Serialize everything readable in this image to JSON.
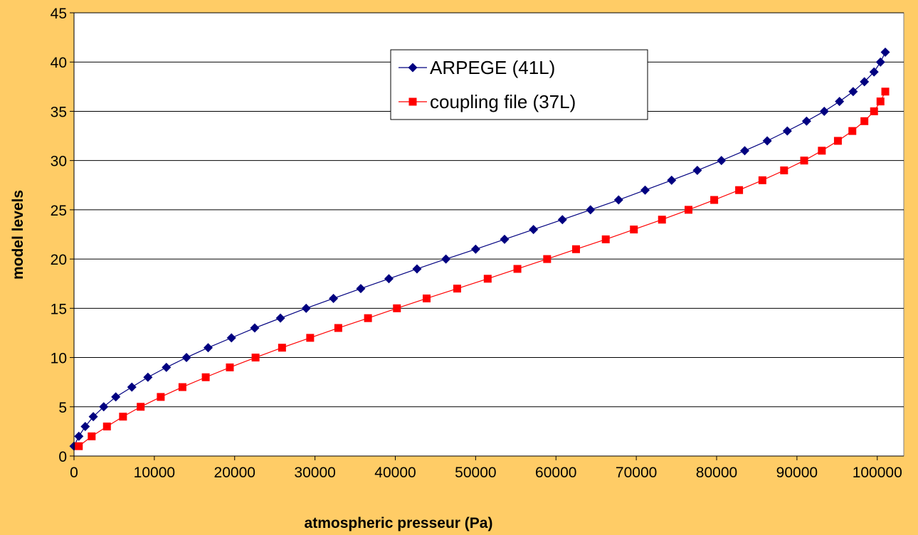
{
  "chart_data": {
    "type": "line",
    "x_label": "atmospheric presseur (Pa)",
    "y_label": "model levels",
    "xlim": [
      0,
      103300
    ],
    "ylim": [
      0,
      45
    ],
    "xticks": [
      0,
      10000,
      20000,
      30000,
      40000,
      50000,
      60000,
      70000,
      80000,
      90000,
      100000
    ],
    "yticks": [
      0,
      5,
      10,
      15,
      20,
      25,
      30,
      35,
      40,
      45
    ],
    "grid": true,
    "legend": "top",
    "series": [
      {
        "name": "ARPEGE (41L)",
        "color": "#000080",
        "marker": "diamond",
        "x": [
          0,
          600,
          1400,
          2400,
          3700,
          5200,
          7200,
          9200,
          11500,
          14000,
          16700,
          19600,
          22500,
          25700,
          28900,
          32300,
          35700,
          39200,
          42700,
          46300,
          50000,
          53600,
          57200,
          60800,
          64300,
          67800,
          71100,
          74400,
          77600,
          80600,
          83500,
          86300,
          88800,
          91200,
          93400,
          95300,
          97000,
          98400,
          99600,
          100400,
          101000
        ],
        "values": [
          1,
          2,
          3,
          4,
          5,
          6,
          7,
          8,
          9,
          10,
          11,
          12,
          13,
          14,
          15,
          16,
          17,
          18,
          19,
          20,
          21,
          22,
          23,
          24,
          25,
          26,
          27,
          28,
          29,
          30,
          31,
          32,
          33,
          34,
          35,
          36,
          37,
          38,
          39,
          40,
          41
        ]
      },
      {
        "name": "coupling file (37L)",
        "color": "#ff0000",
        "marker": "square",
        "x": [
          600,
          2200,
          4100,
          6100,
          8300,
          10800,
          13500,
          16400,
          19400,
          22600,
          25900,
          29400,
          32900,
          36600,
          40200,
          43900,
          47700,
          51500,
          55200,
          58900,
          62500,
          66200,
          69700,
          73200,
          76500,
          79700,
          82800,
          85700,
          88400,
          90900,
          93100,
          95100,
          96900,
          98400,
          99600,
          100400,
          101000
        ],
        "values": [
          1,
          2,
          3,
          4,
          5,
          6,
          7,
          8,
          9,
          10,
          11,
          12,
          13,
          14,
          15,
          16,
          17,
          18,
          19,
          20,
          21,
          22,
          23,
          24,
          25,
          26,
          27,
          28,
          29,
          30,
          31,
          32,
          33,
          34,
          35,
          36,
          37
        ]
      }
    ]
  }
}
